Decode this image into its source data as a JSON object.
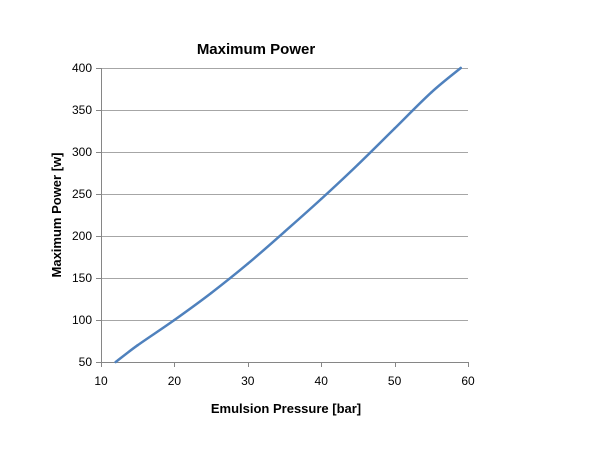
{
  "chart_data": {
    "type": "line",
    "title": "Maximum Power",
    "xlabel": "Emulsion Pressure [bar]",
    "ylabel": "Maximum Power [w]",
    "xlim": [
      10,
      60
    ],
    "ylim": [
      50,
      400
    ],
    "xticks": [
      "10",
      "20",
      "30",
      "40",
      "50",
      "60"
    ],
    "yticks": [
      "50",
      "100",
      "150",
      "200",
      "250",
      "300",
      "350",
      "400"
    ],
    "grid": "horizontal",
    "legend": "none",
    "series": [
      {
        "color": "#4f81bd",
        "x": [
          12,
          15,
          20,
          25,
          30,
          35,
          40,
          45,
          50,
          55,
          59
        ],
        "y": [
          50,
          70,
          100,
          132,
          167,
          205,
          244,
          285,
          328,
          371,
          400
        ]
      }
    ]
  }
}
